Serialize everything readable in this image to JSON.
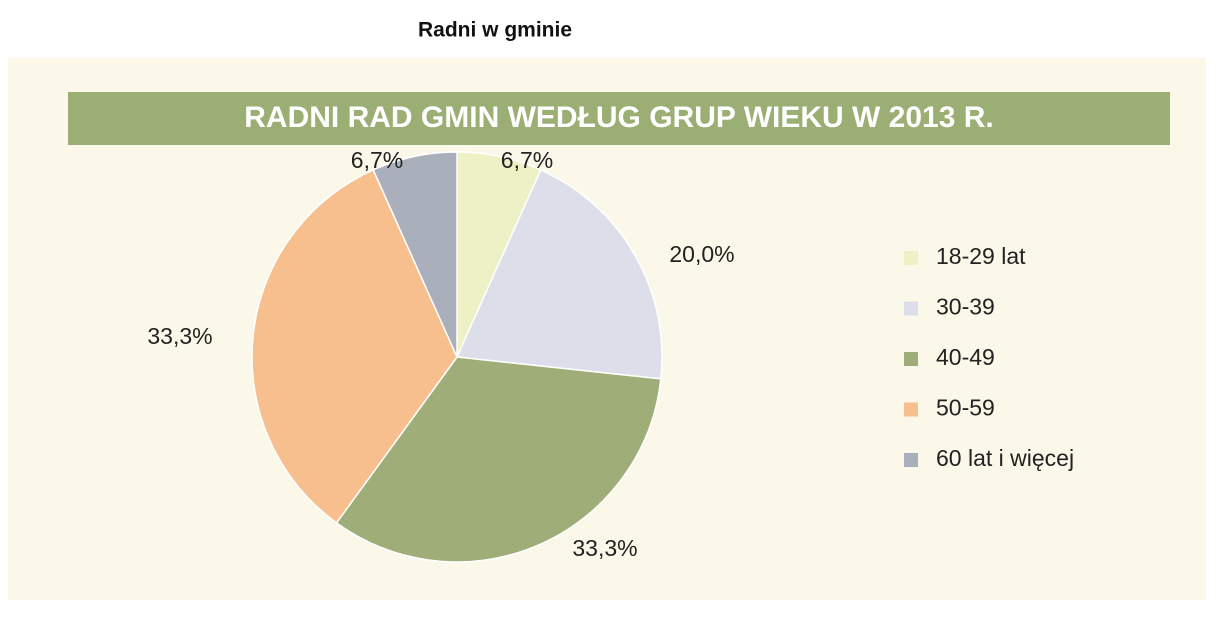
{
  "page_title": "Radni w gminie",
  "chart_data": {
    "type": "pie",
    "title": "RADNI RAD GMIN WEDŁUG GRUP WIEKU W 2013 R.",
    "categories": [
      "18-29 lat",
      "30-39",
      "40-49",
      "50-59",
      "60 lat i więcej"
    ],
    "values": [
      6.7,
      20.0,
      33.3,
      33.3,
      6.7
    ],
    "value_labels": [
      "6,7%",
      "20,0%",
      "33,3%",
      "33,3%",
      "6,7%"
    ],
    "colors": [
      "#eef0c6",
      "#dcdfe9",
      "#9fae78",
      "#f8bf8e",
      "#a9afbb"
    ],
    "legend": "right"
  }
}
